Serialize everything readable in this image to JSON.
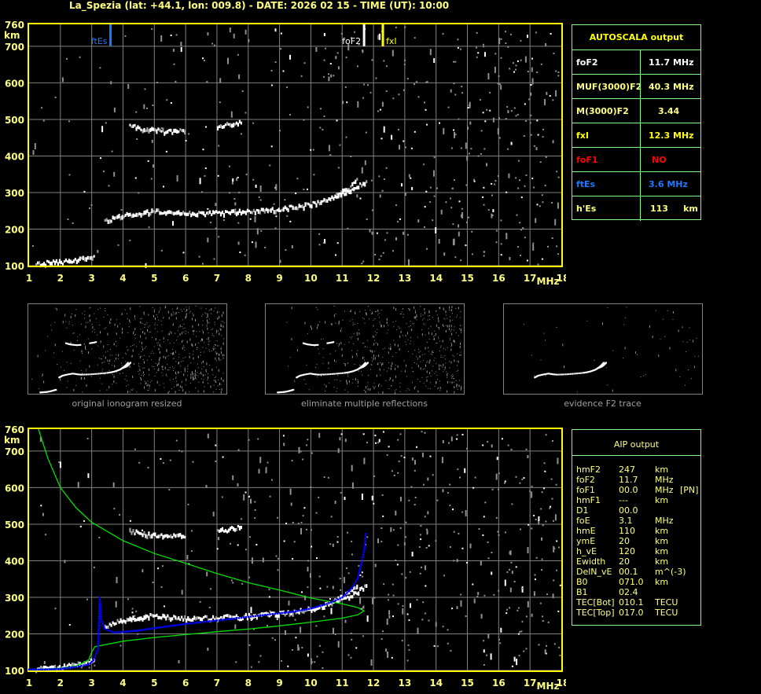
{
  "title": "La_Spezia (lat: +44.1, lon: 009.8) - DATE: 2026 02 15 - TIME (UT): 10:00",
  "colors": {
    "axis": "#ffff00",
    "grid": "#808080",
    "table_border": "#80ff80",
    "label": "#ffff80",
    "fof2": "#ffffff",
    "fxi": "#ffff00",
    "ftes": "#1e78ff",
    "fof1": "#ff0000",
    "aip_profile": "#00e000",
    "aip_trace": "#0000ff"
  },
  "autoscala": {
    "title": "AUTOSCALA output",
    "rows": [
      {
        "key": "foF2",
        "value": "11.7 MHz",
        "color": "#ffffff"
      },
      {
        "key": "MUF(3000)F2",
        "value": "40.3 MHz",
        "color": "#ffff80"
      },
      {
        "key": "M(3000)F2",
        "value": "3.44",
        "color": "#ffff80"
      },
      {
        "key": "fxI",
        "value": "12.3 MHz",
        "color": "#ffff00"
      },
      {
        "key": "foF1",
        "value": "NO",
        "color": "#ff0000"
      },
      {
        "key": "ftEs",
        "value": "3.6 MHz",
        "color": "#1e78ff"
      },
      {
        "key": "h'Es",
        "value": "113     km",
        "color": "#ffff80"
      }
    ]
  },
  "aip": {
    "title": "AIP output",
    "rows": [
      {
        "key": "hmF2",
        "value": "247",
        "unit": "km",
        "extra": ""
      },
      {
        "key": "foF2",
        "value": "11.7",
        "unit": "MHz",
        "extra": ""
      },
      {
        "key": "foF1",
        "value": "00.0",
        "unit": "MHz",
        "extra": "[PN]"
      },
      {
        "key": "hmF1",
        "value": "---",
        "unit": "km",
        "extra": ""
      },
      {
        "key": "D1",
        "value": "00.0",
        "unit": "",
        "extra": ""
      },
      {
        "key": "foE",
        "value": "3.1",
        "unit": "MHz",
        "extra": ""
      },
      {
        "key": "hmE",
        "value": "110",
        "unit": "km",
        "extra": ""
      },
      {
        "key": "ymE",
        "value": "20",
        "unit": "km",
        "extra": ""
      },
      {
        "key": "h_vE",
        "value": "120",
        "unit": "km",
        "extra": ""
      },
      {
        "key": "Ewidth",
        "value": "20",
        "unit": "km",
        "extra": ""
      },
      {
        "key": "DelN_vE",
        "value": "00.1",
        "unit": "m^(-3)",
        "extra": ""
      },
      {
        "key": "B0",
        "value": "071.0",
        "unit": "km",
        "extra": ""
      },
      {
        "key": "B1",
        "value": "02.4",
        "unit": "",
        "extra": ""
      },
      {
        "key": "TEC[Bot]",
        "value": "010.1",
        "unit": "TECU",
        "extra": ""
      },
      {
        "key": "TEC[Top]",
        "value": "017.0",
        "unit": "TECU",
        "extra": ""
      }
    ]
  },
  "thumbnails": [
    {
      "label": "original ionogram resized"
    },
    {
      "label": "eliminate multiple reflections"
    },
    {
      "label": "evidence F2 trace"
    }
  ],
  "chart_data": [
    {
      "type": "scatter",
      "name_id": "autoscala-ionogram",
      "xlabel": "MHz",
      "ylabel": "km",
      "xlim": [
        1,
        18
      ],
      "ylim": [
        100,
        760
      ],
      "xticks": [
        "1",
        "2",
        "3",
        "4",
        "5",
        "6",
        "7",
        "8",
        "9",
        "10",
        "11",
        "12",
        "13",
        "14",
        "15",
        "16",
        "17",
        "18"
      ],
      "yticks": [
        "760",
        "700",
        "600",
        "500",
        "400",
        "300",
        "200",
        "100"
      ],
      "grid": true,
      "markers": [
        {
          "label": "ftEs",
          "freq": 3.6,
          "color": "#1e78ff"
        },
        {
          "label": "foF2",
          "freq": 11.7,
          "color": "#ffffff"
        },
        {
          "label": "fxI",
          "freq": 12.3,
          "color": "#ffff00"
        }
      ],
      "echo_traces": [
        {
          "points": [
            [
              1.2,
              104
            ],
            [
              1.6,
              106
            ],
            [
              2,
              108
            ],
            [
              2.4,
              113
            ],
            [
              2.8,
              120
            ],
            [
              3.1,
              126
            ]
          ]
        },
        {
          "points": [
            [
              3.4,
              218
            ],
            [
              3.8,
              232
            ],
            [
              4.3,
              240
            ],
            [
              5,
              248
            ],
            [
              5.5,
              243
            ],
            [
              6,
              240
            ],
            [
              7,
              242
            ],
            [
              8,
              247
            ],
            [
              9,
              253
            ],
            [
              9.5,
              258
            ],
            [
              10,
              266
            ],
            [
              10.5,
              278
            ],
            [
              10.9,
              295
            ],
            [
              11.2,
              312
            ],
            [
              11.5,
              335
            ]
          ]
        },
        {
          "points": [
            [
              10.8,
              290
            ],
            [
              11.2,
              300
            ],
            [
              11.5,
              315
            ],
            [
              11.8,
              335
            ]
          ]
        },
        {
          "points": [
            [
              4.2,
              480
            ],
            [
              4.6,
              472
            ],
            [
              5,
              468
            ],
            [
              5.5,
              465
            ],
            [
              6,
              468
            ]
          ]
        },
        {
          "points": [
            [
              7,
              480
            ],
            [
              7.4,
              484
            ],
            [
              7.8,
              490
            ]
          ]
        }
      ]
    },
    {
      "type": "line",
      "name_id": "aip-ionogram",
      "xlabel": "MHz",
      "ylabel": "km",
      "xlim": [
        1,
        18
      ],
      "ylim": [
        100,
        760
      ],
      "xticks": [
        "1",
        "2",
        "3",
        "4",
        "5",
        "6",
        "7",
        "8",
        "9",
        "10",
        "11",
        "12",
        "13",
        "14",
        "15",
        "16",
        "17",
        "18"
      ],
      "yticks": [
        "760",
        "700",
        "600",
        "500",
        "400",
        "300",
        "200",
        "100"
      ],
      "grid": true,
      "aip_virtual_height_trace": [
        [
          1,
          103
        ],
        [
          1.5,
          103
        ],
        [
          2,
          105
        ],
        [
          2.5,
          110
        ],
        [
          2.9,
          117
        ],
        [
          3.05,
          128
        ],
        [
          3.1,
          140
        ],
        [
          3.2,
          160
        ],
        [
          3.25,
          300
        ],
        [
          3.3,
          240
        ],
        [
          3.4,
          215
        ],
        [
          3.7,
          204
        ],
        [
          4,
          206
        ],
        [
          4.5,
          210
        ],
        [
          5,
          216
        ],
        [
          5.5,
          222
        ],
        [
          6,
          228
        ],
        [
          7,
          237
        ],
        [
          8,
          247
        ],
        [
          9,
          257
        ],
        [
          9.5,
          262
        ],
        [
          10,
          270
        ],
        [
          10.5,
          282
        ],
        [
          11,
          300
        ],
        [
          11.3,
          325
        ],
        [
          11.5,
          355
        ],
        [
          11.6,
          390
        ],
        [
          11.7,
          430
        ],
        [
          11.75,
          480
        ]
      ],
      "aip_density_profile": [
        [
          1.3,
          760
        ],
        [
          1.6,
          680
        ],
        [
          2,
          600
        ],
        [
          2.5,
          545
        ],
        [
          3,
          505
        ],
        [
          4,
          455
        ],
        [
          5,
          420
        ],
        [
          6,
          393
        ],
        [
          7,
          365
        ],
        [
          8,
          340
        ],
        [
          9,
          320
        ],
        [
          10,
          298
        ],
        [
          11,
          282
        ],
        [
          11.5,
          272
        ],
        [
          11.7,
          263
        ],
        [
          11.5,
          252
        ],
        [
          11,
          243
        ],
        [
          10,
          232
        ],
        [
          9,
          222
        ],
        [
          8,
          213
        ],
        [
          7,
          206
        ],
        [
          6,
          198
        ],
        [
          5,
          190
        ],
        [
          4,
          180
        ],
        [
          3.1,
          165
        ],
        [
          3,
          150
        ],
        [
          2.9,
          128
        ],
        [
          2.5,
          112
        ],
        [
          2,
          106
        ],
        [
          1.5,
          104
        ],
        [
          1,
          103
        ]
      ],
      "echo_traces": [
        {
          "points": [
            [
              1.2,
              104
            ],
            [
              1.6,
              106
            ],
            [
              2,
              108
            ],
            [
              2.4,
              113
            ],
            [
              2.8,
              120
            ],
            [
              3.1,
              126
            ]
          ]
        },
        {
          "points": [
            [
              3.4,
              218
            ],
            [
              3.8,
              232
            ],
            [
              4.3,
              240
            ],
            [
              5,
              248
            ],
            [
              5.5,
              243
            ],
            [
              6,
              240
            ],
            [
              7,
              242
            ],
            [
              8,
              247
            ],
            [
              9,
              253
            ],
            [
              9.5,
              258
            ],
            [
              10,
              266
            ],
            [
              10.5,
              278
            ],
            [
              10.9,
              295
            ],
            [
              11.2,
              312
            ],
            [
              11.5,
              335
            ]
          ]
        },
        {
          "points": [
            [
              10.8,
              290
            ],
            [
              11.2,
              300
            ],
            [
              11.5,
              315
            ],
            [
              11.8,
              335
            ]
          ]
        },
        {
          "points": [
            [
              4.2,
              480
            ],
            [
              4.6,
              472
            ],
            [
              5,
              468
            ],
            [
              5.5,
              465
            ],
            [
              6,
              468
            ]
          ]
        },
        {
          "points": [
            [
              7,
              480
            ],
            [
              7.4,
              484
            ],
            [
              7.8,
              490
            ]
          ]
        }
      ]
    }
  ]
}
